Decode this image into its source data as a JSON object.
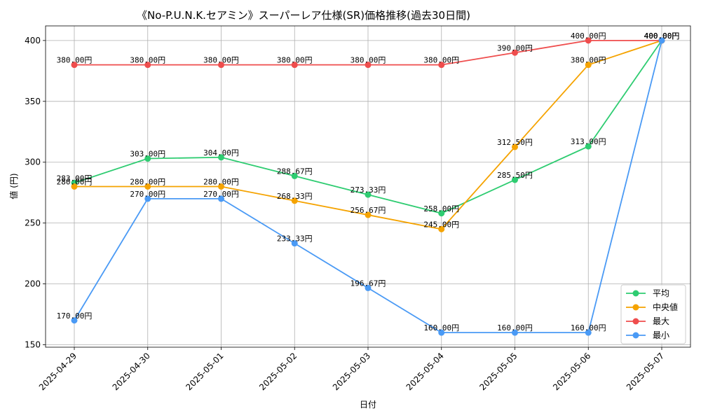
{
  "chart_data": {
    "type": "line",
    "title": "《No-P.U.N.K.セアミン》スーパーレア仕様(SR)価格推移(過去30日間)",
    "xlabel": "日付",
    "ylabel": "値 (円)",
    "categories": [
      "2025-04-29",
      "2025-04-30",
      "2025-05-01",
      "2025-05-02",
      "2025-05-03",
      "2025-05-04",
      "2025-05-05",
      "2025-05-06",
      "2025-05-07"
    ],
    "ylim": [
      148,
      412
    ],
    "yticks": [
      150,
      200,
      250,
      300,
      350,
      400
    ],
    "grid": true,
    "legend_position": "lower-right",
    "label_suffix": "円",
    "series": [
      {
        "name": "平均",
        "color": "#2ecc71",
        "values": [
          283.0,
          303.0,
          304.0,
          288.67,
          273.33,
          258.0,
          285.5,
          313.0,
          400.0
        ]
      },
      {
        "name": "中央値",
        "color": "#f5a300",
        "values": [
          280.0,
          280.0,
          280.0,
          268.33,
          256.67,
          245.0,
          312.5,
          380.0,
          400.0
        ]
      },
      {
        "name": "最大",
        "color": "#ef4d4d",
        "values": [
          380.0,
          380.0,
          380.0,
          380.0,
          380.0,
          380.0,
          390.0,
          400.0,
          400.0
        ]
      },
      {
        "name": "最小",
        "color": "#4a9af5",
        "values": [
          170.0,
          270.0,
          270.0,
          233.33,
          196.67,
          160.0,
          160.0,
          160.0,
          400.0
        ]
      }
    ]
  }
}
